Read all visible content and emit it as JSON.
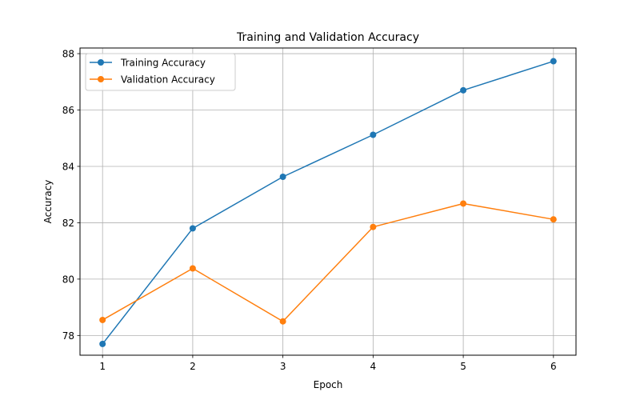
{
  "chart_data": {
    "type": "line",
    "title": "Training and Validation Accuracy",
    "xlabel": "Epoch",
    "ylabel": "Accuracy",
    "x": [
      1,
      2,
      3,
      4,
      5,
      6
    ],
    "xlim": [
      0.75,
      6.25
    ],
    "ylim": [
      77.3,
      88.2
    ],
    "xticks": [
      1,
      2,
      3,
      4,
      5,
      6
    ],
    "yticks": [
      78,
      80,
      82,
      84,
      86,
      88
    ],
    "grid": true,
    "legend_position": "upper-left",
    "series": [
      {
        "name": "Training Accuracy",
        "color": "#1f77b4",
        "marker": "circle",
        "values": [
          77.7,
          81.8,
          83.63,
          85.12,
          86.7,
          87.73
        ]
      },
      {
        "name": "Validation Accuracy",
        "color": "#ff7f0e",
        "marker": "circle",
        "values": [
          78.55,
          80.38,
          78.5,
          81.85,
          82.68,
          82.12
        ]
      }
    ]
  }
}
